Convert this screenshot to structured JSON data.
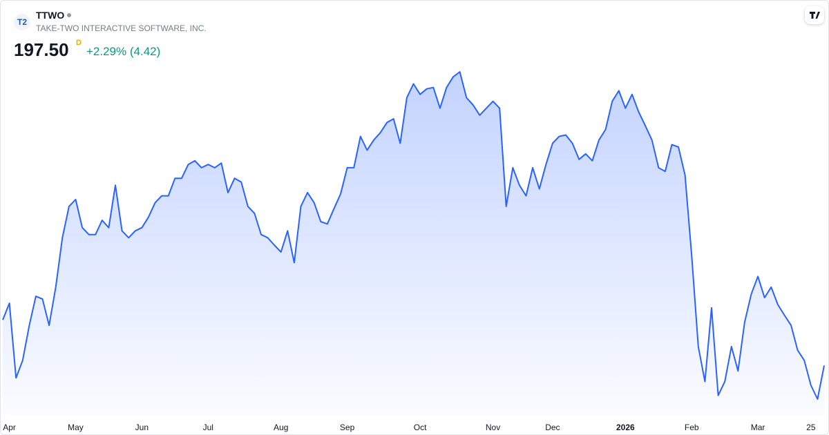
{
  "header": {
    "logo": "T2",
    "symbol": "TTWO",
    "name": "TAKE-TWO INTERACTIVE SOFTWARE, INC.",
    "price": "197.50",
    "interval": "D",
    "change": "+2.29% (4.42)"
  },
  "chart_data": {
    "type": "area",
    "color": "#2962ff",
    "values": [
      207.4,
      211.0,
      194.8,
      198.6,
      206.2,
      212.5,
      211.9,
      206.2,
      214.5,
      225.2,
      232.0,
      233.5,
      227.4,
      225.9,
      225.9,
      229.0,
      227.4,
      236.6,
      226.7,
      225.2,
      226.7,
      227.4,
      229.7,
      232.8,
      234.3,
      234.3,
      238.1,
      238.1,
      241.1,
      241.9,
      240.4,
      241.1,
      240.4,
      241.4,
      235.0,
      238.1,
      237.3,
      232.0,
      230.5,
      225.9,
      225.2,
      223.6,
      222.1,
      226.7,
      219.8,
      232.0,
      235.0,
      232.8,
      228.7,
      228.2,
      231.5,
      234.7,
      240.4,
      240.4,
      247.2,
      244.2,
      246.4,
      248.0,
      250.2,
      251.0,
      245.7,
      255.6,
      258.6,
      256.3,
      257.5,
      257.8,
      253.3,
      257.8,
      260.1,
      261.2,
      255.6,
      254.0,
      251.8,
      253.3,
      254.8,
      253.3,
      232.0,
      240.4,
      236.6,
      234.3,
      240.4,
      235.8,
      241.1,
      245.7,
      247.2,
      247.5,
      245.7,
      242.2,
      243.4,
      241.9,
      246.4,
      248.7,
      254.8,
      257.1,
      253.3,
      256.3,
      252.5,
      249.5,
      246.4,
      240.4,
      239.6,
      245.4,
      244.9,
      238.8,
      221.4,
      201.6,
      194.0,
      210.0,
      191.0,
      194.0,
      201.6,
      196.3,
      206.9,
      213.0,
      216.8,
      212.2,
      214.5,
      210.7,
      208.4,
      206.2,
      200.8,
      198.6,
      193.2,
      190.2,
      197.5
    ],
    "xticks": [
      {
        "value": 1,
        "label": "Apr"
      },
      {
        "value": 11,
        "label": "May"
      },
      {
        "value": 21,
        "label": "Jun"
      },
      {
        "value": 31,
        "label": "Jul"
      },
      {
        "value": 42,
        "label": "Aug"
      },
      {
        "value": 52,
        "label": "Sep"
      },
      {
        "value": 63,
        "label": "Oct"
      },
      {
        "value": 74,
        "label": "Nov"
      },
      {
        "value": 83,
        "label": "Dec"
      },
      {
        "value": 94,
        "label": "2026"
      },
      {
        "value": 104,
        "label": "Feb"
      },
      {
        "value": 114,
        "label": "Mar"
      },
      {
        "value": 122,
        "label": "25"
      }
    ]
  }
}
